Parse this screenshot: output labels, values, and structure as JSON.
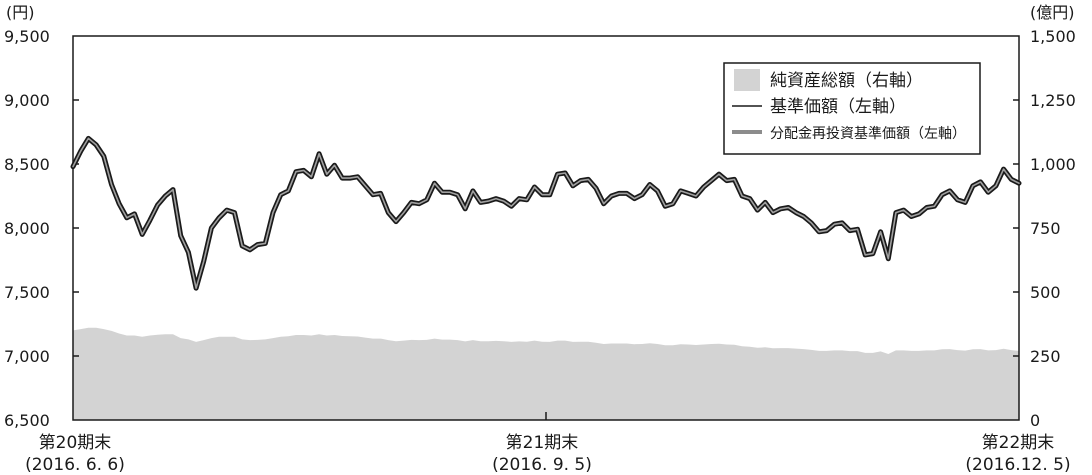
{
  "chart_data": {
    "type": "line",
    "left_unit": "(円)",
    "right_unit": "(億円)",
    "left_ticks": [
      "9,500",
      "9,000",
      "8,500",
      "8,000",
      "7,500",
      "7,000",
      "6,500"
    ],
    "right_ticks": [
      "1,500",
      "1,250",
      "1,000",
      "750",
      "500",
      "250",
      "0"
    ],
    "ylim_left": [
      6500,
      9500
    ],
    "ylim_right": [
      0,
      1500
    ],
    "x_labels": [
      {
        "line1": "第20期末",
        "line2": "(2016. 6. 6)"
      },
      {
        "line1": "第21期末",
        "line2": "(2016. 9. 5)"
      },
      {
        "line1": "第22期末",
        "line2": "(2016.12. 5)"
      }
    ],
    "legend": [
      {
        "label": "純資産総額（右軸）",
        "style": "area",
        "color": "#d3d3d3"
      },
      {
        "label": "基準価額（左軸）",
        "style": "line",
        "color": "#1a1a1a"
      },
      {
        "label": "分配金再投資基準価額（左軸）",
        "style": "line",
        "color": "#8c8c8c"
      }
    ],
    "series": [
      {
        "name": "基準価額（左軸）",
        "axis": "left",
        "values": [
          8480,
          8600,
          8700,
          8650,
          8560,
          8340,
          8190,
          8080,
          8110,
          7950,
          8060,
          8180,
          8250,
          8300,
          7940,
          7810,
          7530,
          7740,
          8000,
          8080,
          8140,
          8120,
          7860,
          7830,
          7870,
          7880,
          8120,
          8260,
          8290,
          8440,
          8450,
          8400,
          8580,
          8420,
          8490,
          8390,
          8390,
          8400,
          8330,
          8260,
          8270,
          8120,
          8050,
          8120,
          8200,
          8190,
          8220,
          8350,
          8280,
          8280,
          8260,
          8150,
          8290,
          8200,
          8210,
          8230,
          8210,
          8170,
          8230,
          8220,
          8320,
          8260,
          8260,
          8420,
          8430,
          8330,
          8370,
          8380,
          8310,
          8190,
          8250,
          8270,
          8270,
          8230,
          8260,
          8340,
          8290,
          8170,
          8190,
          8290,
          8270,
          8250,
          8320,
          8370,
          8420,
          8370,
          8380,
          8250,
          8230,
          8140,
          8200,
          8120,
          8150,
          8160,
          8120,
          8090,
          8040,
          7970,
          7980,
          8030,
          8040,
          7980,
          7990,
          7790,
          7800,
          7970,
          7760,
          8120,
          8140,
          8090,
          8110,
          8160,
          8170,
          8260,
          8290,
          8220,
          8200,
          8330,
          8360,
          8280,
          8330,
          8460,
          8380,
          8350
        ]
      },
      {
        "name": "分配金再投資基準価額（左軸）",
        "axis": "left",
        "values": [
          8480,
          8600,
          8700,
          8650,
          8560,
          8340,
          8190,
          8080,
          8110,
          7950,
          8060,
          8180,
          8250,
          8300,
          7940,
          7810,
          7530,
          7740,
          8000,
          8080,
          8140,
          8120,
          7860,
          7830,
          7870,
          7880,
          8120,
          8260,
          8290,
          8440,
          8450,
          8400,
          8580,
          8420,
          8490,
          8390,
          8390,
          8400,
          8330,
          8260,
          8270,
          8120,
          8050,
          8120,
          8200,
          8190,
          8220,
          8350,
          8280,
          8280,
          8260,
          8150,
          8290,
          8200,
          8210,
          8230,
          8210,
          8170,
          8230,
          8220,
          8320,
          8260,
          8260,
          8420,
          8430,
          8330,
          8370,
          8380,
          8310,
          8190,
          8250,
          8270,
          8270,
          8230,
          8260,
          8340,
          8290,
          8170,
          8190,
          8290,
          8270,
          8250,
          8320,
          8370,
          8420,
          8370,
          8380,
          8250,
          8230,
          8140,
          8200,
          8120,
          8150,
          8160,
          8120,
          8090,
          8040,
          7970,
          7980,
          8030,
          8040,
          7980,
          7990,
          7790,
          7800,
          7970,
          7760,
          8120,
          8140,
          8090,
          8110,
          8160,
          8170,
          8260,
          8290,
          8220,
          8200,
          8330,
          8360,
          8280,
          8330,
          8460,
          8380,
          8350
        ]
      },
      {
        "name": "純資産総額（右軸）",
        "axis": "right",
        "values": [
          350,
          355,
          360,
          360,
          355,
          348,
          338,
          330,
          330,
          325,
          330,
          333,
          335,
          335,
          320,
          315,
          305,
          312,
          320,
          325,
          325,
          325,
          315,
          312,
          313,
          315,
          320,
          325,
          327,
          332,
          332,
          330,
          335,
          330,
          332,
          328,
          327,
          326,
          322,
          318,
          318,
          312,
          308,
          310,
          313,
          312,
          313,
          318,
          314,
          314,
          312,
          307,
          312,
          308,
          308,
          309,
          308,
          305,
          307,
          306,
          310,
          306,
          305,
          310,
          310,
          305,
          306,
          306,
          302,
          297,
          299,
          299,
          299,
          296,
          297,
          300,
          297,
          292,
          292,
          296,
          295,
          293,
          295,
          297,
          298,
          295,
          294,
          288,
          286,
          282,
          284,
          280,
          281,
          281,
          279,
          277,
          274,
          270,
          270,
          272,
          272,
          269,
          269,
          262,
          262,
          268,
          258,
          272,
          272,
          270,
          270,
          272,
          272,
          276,
          277,
          273,
          271,
          276,
          277,
          272,
          273,
          278,
          273,
          270
        ]
      }
    ]
  }
}
